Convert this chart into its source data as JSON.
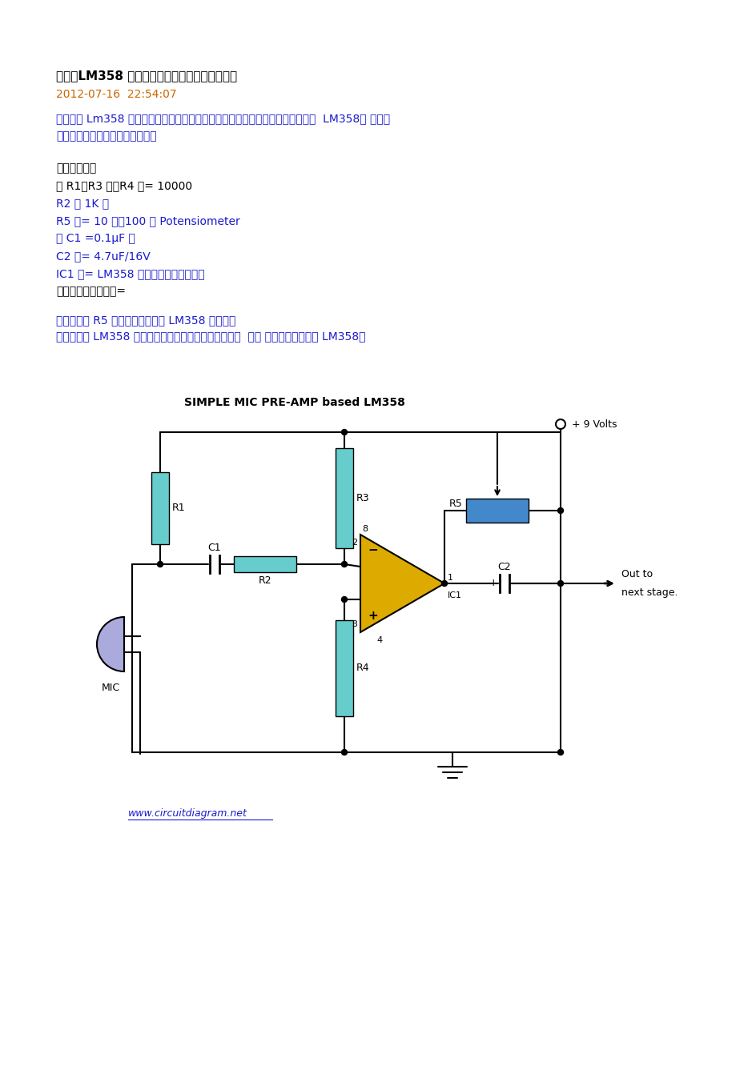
{
  "title": "标题：LM358 的电路图组成的麦克风电路原理图",
  "date": "2012-07-16  22:54:07",
  "para1": "这是一个 Lm358 的一个应用电路图，简单的音频麦克风前置放大器电路的单芯片  LM358。 该电路",
  "para1b": "非常简单，价格低廉，容易建造。",
  "parts_header": "零部件清单：",
  "parts": [
    [
      "的 R1，R3 中，R4 的= 10000",
      "black"
    ],
    [
      "R2 为 1K 的",
      "blue"
    ],
    [
      "R5 的= 10 万，100 万 Potensiometer",
      "blue"
    ],
    [
      "为 C1 =0.1μF 的",
      "blue"
    ],
    [
      "C2 的= 4.7uF/16V",
      "blue"
    ],
    [
      "IC1 的= LM358 双运算放大器的单电源",
      "blue"
    ],
    [
      "驻极体麦克风麦克风=",
      "black"
    ]
  ],
  "note1": "注释：使用 R5 的调整运算放大器 LM358 的增益。",
  "note2": "具有双重的 LM358 运算放大器模块，您可以建立立体声  音频 前级放大器采用单 LM358。",
  "circuit_title": "SIMPLE MIC PRE-AMP based LM358",
  "voltage_label": "+ 9 Volts",
  "out_label1": "Out to",
  "out_label2": "next stage.",
  "website": "www.circuitdiagram.net",
  "bg_color": "#ffffff",
  "text_color_black": "#000000",
  "text_color_blue": "#1a1acd",
  "text_color_orange": "#cc6600",
  "resistor_color": "#66cccc",
  "r5_color": "#4488cc",
  "opamp_color": "#ddaa00",
  "mic_color": "#aaaadd",
  "wire_color": "#000000",
  "title_fontsize": 11,
  "body_fontsize": 10,
  "small_fontsize": 9,
  "circuit_fontsize": 9
}
